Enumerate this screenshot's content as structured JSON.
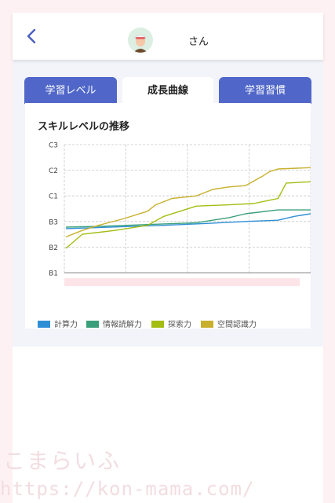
{
  "header": {
    "back_icon": "chevron-left-icon",
    "avatar_icon": "child-avatar-icon",
    "name": "さん"
  },
  "tabs": [
    {
      "label": "学習レベル",
      "active": false
    },
    {
      "label": "成長曲線",
      "active": true
    },
    {
      "label": "学習習慣",
      "active": false
    }
  ],
  "card": {
    "title": "スキルレベルの推移"
  },
  "watermark": {
    "line1": "こまらいふ",
    "line2": "https://kon-mama.com/"
  },
  "colors": {
    "accent": "#5067c9",
    "keisan": "#2f8fd6",
    "joho": "#3aa07a",
    "tansaku": "#a3bd12",
    "kukan": "#c8b02c"
  },
  "chart_data": {
    "type": "line",
    "title": "スキルレベルの推移",
    "y_ticks": [
      "B1",
      "B2",
      "B3",
      "C1",
      "C2",
      "C3"
    ],
    "ylim": [
      0,
      5
    ],
    "xlim": [
      0,
      30
    ],
    "grid": true,
    "legend_position": "bottom-left",
    "series": [
      {
        "name": "計算力",
        "color": "#2f8fd6",
        "points": [
          [
            0,
            1.72
          ],
          [
            12,
            1.85
          ],
          [
            17,
            1.92
          ],
          [
            22,
            2.0
          ],
          [
            26,
            2.05
          ],
          [
            28,
            2.2
          ],
          [
            30,
            2.3
          ]
        ]
      },
      {
        "name": "情報読解力",
        "color": "#3aa07a",
        "points": [
          [
            0,
            1.78
          ],
          [
            5,
            1.82
          ],
          [
            10,
            1.88
          ],
          [
            16,
            1.95
          ],
          [
            20,
            2.15
          ],
          [
            22,
            2.3
          ],
          [
            26,
            2.45
          ],
          [
            30,
            2.45
          ]
        ]
      },
      {
        "name": "探索力",
        "color": "#a3bd12",
        "points": [
          [
            0,
            0.95
          ],
          [
            2,
            1.5
          ],
          [
            6,
            1.65
          ],
          [
            10,
            1.85
          ],
          [
            12,
            2.2
          ],
          [
            16,
            2.6
          ],
          [
            20,
            2.65
          ],
          [
            23,
            2.7
          ],
          [
            26,
            2.9
          ],
          [
            27,
            3.5
          ],
          [
            30,
            3.55
          ]
        ]
      },
      {
        "name": "空間認識力",
        "color": "#c8b02c",
        "points": [
          [
            0,
            1.4
          ],
          [
            2,
            1.65
          ],
          [
            4,
            1.85
          ],
          [
            7,
            2.1
          ],
          [
            10,
            2.4
          ],
          [
            11,
            2.65
          ],
          [
            13,
            2.9
          ],
          [
            16,
            3.0
          ],
          [
            18,
            3.25
          ],
          [
            20,
            3.35
          ],
          [
            22,
            3.4
          ],
          [
            24,
            3.75
          ],
          [
            25,
            3.95
          ],
          [
            26,
            4.05
          ],
          [
            30,
            4.1
          ]
        ]
      }
    ]
  }
}
